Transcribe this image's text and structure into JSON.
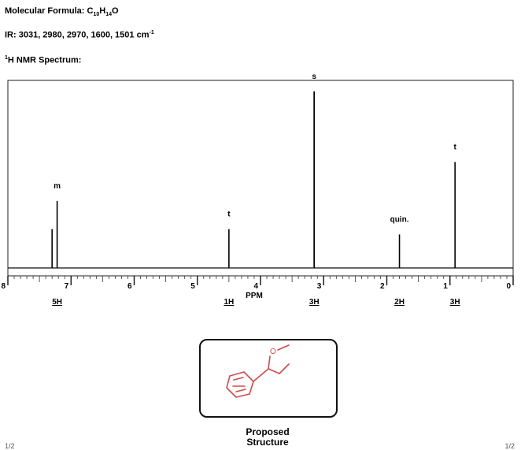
{
  "header": {
    "formula_label": "Molecular Formula: C",
    "formula_c_sub": "10",
    "formula_h": "H",
    "formula_h_sub": "14",
    "formula_o": "O",
    "ir_label": "IR: 3031, 2980, 2970, 1600, 1501 cm",
    "ir_sup": "-1",
    "nmr_sup": "1",
    "nmr_label": "H NMR Spectrum:"
  },
  "chart_data": {
    "type": "line",
    "xlabel": "PPM",
    "xlim": [
      8,
      0
    ],
    "x_reversed": true,
    "ticks": [
      "8",
      "7",
      "6",
      "5",
      "4",
      "3",
      "2",
      "1",
      "0"
    ],
    "peaks": [
      {
        "ppm": 7.3,
        "height": 0.22,
        "multiplicity": "",
        "integration": ""
      },
      {
        "ppm": 7.22,
        "height": 0.38,
        "multiplicity": "m",
        "integration": "5H"
      },
      {
        "ppm": 4.5,
        "height": 0.22,
        "multiplicity": "t",
        "integration": "1H"
      },
      {
        "ppm": 3.15,
        "height": 1.0,
        "multiplicity": "s",
        "integration": "3H"
      },
      {
        "ppm": 1.8,
        "height": 0.19,
        "multiplicity": "quin.",
        "integration": "2H"
      },
      {
        "ppm": 0.92,
        "height": 0.6,
        "multiplicity": "t",
        "integration": "3H"
      }
    ]
  },
  "structure": {
    "color": "#d04a4a",
    "atom_o": "O"
  },
  "footer": {
    "proposed_line1": "Proposed",
    "proposed_line2": "Structure",
    "left_corner": "1/2",
    "right_corner": "1/2"
  }
}
